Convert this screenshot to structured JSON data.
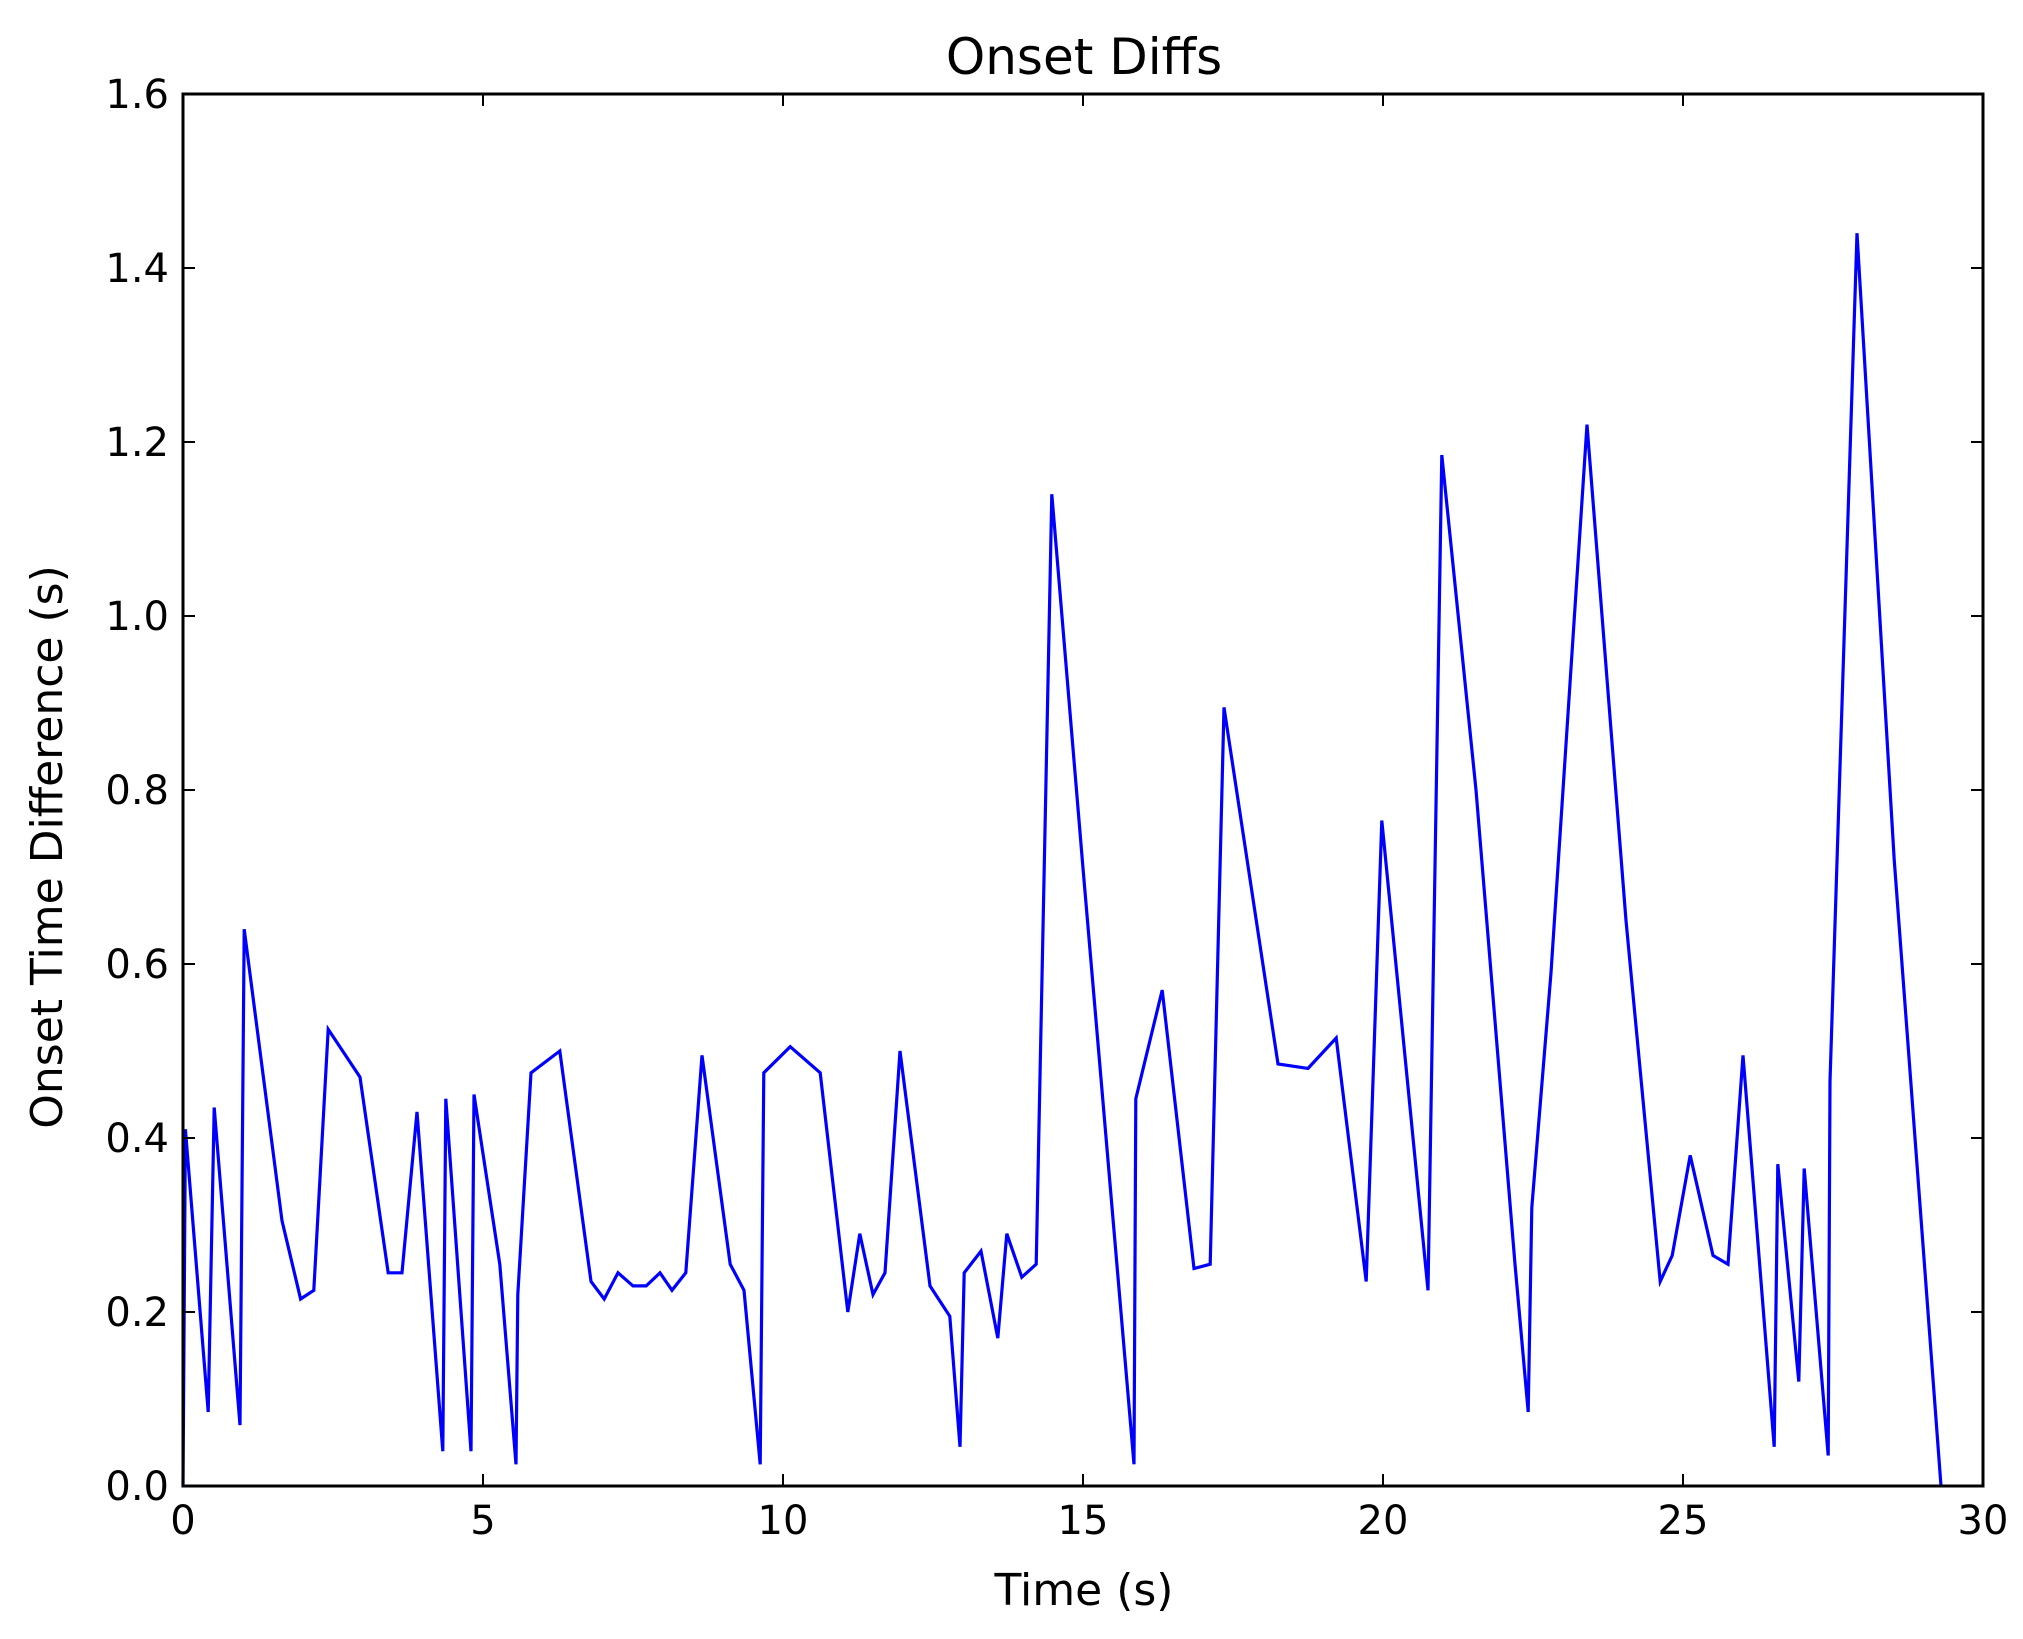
{
  "chart_data": {
    "type": "line",
    "title": "Onset Diffs",
    "xlabel": "Time (s)",
    "ylabel": "Onset Time Difference (s)",
    "xlim": [
      0,
      30
    ],
    "ylim": [
      0.0,
      1.6
    ],
    "xticks": [
      0,
      5,
      10,
      15,
      20,
      25,
      30
    ],
    "xtick_labels": [
      "0",
      "5",
      "10",
      "15",
      "20",
      "25",
      "30"
    ],
    "yticks": [
      0.0,
      0.2,
      0.4,
      0.6,
      0.8,
      1.0,
      1.2,
      1.4,
      1.6
    ],
    "ytick_labels": [
      "0.0",
      "0.2",
      "0.4",
      "0.6",
      "0.8",
      "1.0",
      "1.2",
      "1.4",
      "1.6"
    ],
    "grid": false,
    "legend": null,
    "line_color": "#0000ff",
    "series": [
      {
        "x": [
          0.0,
          0.04,
          0.42,
          0.52,
          0.95,
          1.02,
          1.65,
          1.96,
          2.18,
          2.42,
          2.95,
          3.42,
          3.65,
          3.9,
          4.33,
          4.38,
          4.8,
          4.85,
          5.28,
          5.55,
          5.58,
          5.8,
          6.28,
          6.8,
          7.02,
          7.25,
          7.5,
          7.72,
          7.95,
          8.15,
          8.38,
          8.65,
          9.12,
          9.35,
          9.62,
          9.68,
          10.12,
          10.62,
          11.08,
          11.28,
          11.5,
          11.7,
          11.95,
          12.45,
          12.78,
          12.95,
          13.02,
          13.3,
          13.58,
          13.73,
          13.98,
          14.22,
          14.48,
          15.0,
          15.85,
          15.88,
          16.32,
          16.85,
          17.12,
          17.35,
          18.25,
          18.75,
          19.22,
          19.72,
          19.98,
          20.75,
          20.98,
          21.55,
          22.2,
          22.42,
          22.48,
          22.8,
          23.4,
          24.05,
          24.62,
          24.82,
          25.12,
          25.5,
          25.75,
          26.0,
          26.52,
          26.58,
          26.93,
          27.02,
          27.42,
          27.45,
          27.9,
          28.52,
          29.3
        ],
        "y": [
          0.0,
          0.41,
          0.085,
          0.435,
          0.07,
          0.64,
          0.305,
          0.215,
          0.225,
          0.525,
          0.47,
          0.245,
          0.245,
          0.43,
          0.04,
          0.445,
          0.04,
          0.45,
          0.255,
          0.025,
          0.22,
          0.475,
          0.5,
          0.235,
          0.215,
          0.245,
          0.23,
          0.23,
          0.245,
          0.225,
          0.245,
          0.495,
          0.255,
          0.225,
          0.025,
          0.475,
          0.505,
          0.475,
          0.2,
          0.29,
          0.22,
          0.245,
          0.5,
          0.23,
          0.195,
          0.045,
          0.245,
          0.27,
          0.17,
          0.29,
          0.24,
          0.255,
          1.14,
          0.71,
          0.025,
          0.445,
          0.57,
          0.25,
          0.255,
          0.895,
          0.485,
          0.48,
          0.515,
          0.235,
          0.765,
          0.225,
          1.185,
          0.8,
          0.255,
          0.085,
          0.32,
          0.59,
          1.22,
          0.65,
          0.235,
          0.265,
          0.38,
          0.265,
          0.255,
          0.495,
          0.045,
          0.37,
          0.12,
          0.365,
          0.035,
          0.465,
          1.44,
          0.72,
          0.0
        ]
      }
    ]
  }
}
